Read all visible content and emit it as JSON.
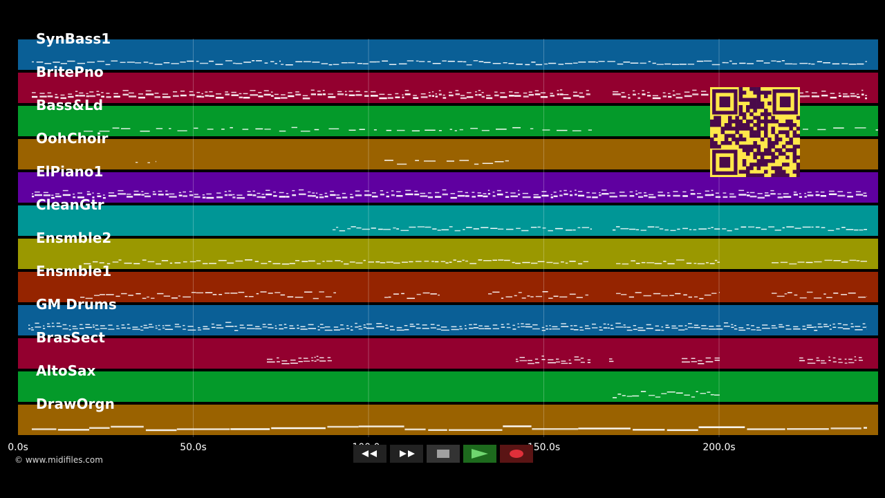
{
  "tracks": [
    {
      "name": "SynBass1",
      "color": "#0a5f96"
    },
    {
      "name": "BritePno",
      "color": "#93002f"
    },
    {
      "name": "Bass&Ld",
      "color": "#049a2a"
    },
    {
      "name": "OohChoir",
      "color": "#9a6200"
    },
    {
      "name": "ElPiano1",
      "color": "#5f00a0"
    },
    {
      "name": "CleanGtr",
      "color": "#009696"
    },
    {
      "name": "Ensmble2",
      "color": "#9a9800"
    },
    {
      "name": "Ensmble1",
      "color": "#952400"
    },
    {
      "name": "GM Drums",
      "color": "#0a5f96"
    },
    {
      "name": "BrasSect",
      "color": "#93002f"
    },
    {
      "name": "AltoSax",
      "color": "#049a2a"
    },
    {
      "name": "DrawOrgn",
      "color": "#9a6200"
    }
  ],
  "timeline": {
    "ticks": [
      "0.0s",
      "50.0s",
      "100.0s",
      "150.0s",
      "200.0s"
    ]
  },
  "copyright": "© www.midifiles.com",
  "transport": {
    "rewind_icon": "rewind-icon",
    "fast_forward_icon": "fast-forward-icon",
    "stop_icon": "stop-icon",
    "play_icon": "play-icon",
    "record_icon": "record-icon"
  },
  "qr_icon": "qr-code-icon"
}
